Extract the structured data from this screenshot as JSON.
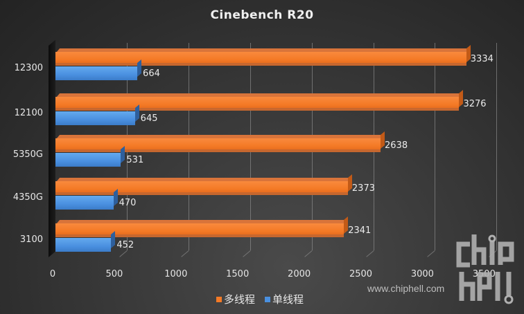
{
  "chart_data": {
    "type": "bar",
    "orientation": "horizontal",
    "title": "Cinebench  R20",
    "categories": [
      "12300",
      "12100",
      "5350G",
      "4350G",
      "3100"
    ],
    "series": [
      {
        "name": "多线程",
        "color": "#f47a26",
        "values": [
          3334,
          3276,
          2638,
          2373,
          2341
        ]
      },
      {
        "name": "单线程",
        "color": "#4a90e0",
        "values": [
          664,
          645,
          531,
          470,
          452
        ]
      }
    ],
    "xlabel": "",
    "ylabel": "",
    "xlim": [
      0,
      3500
    ],
    "xticks": [
      "0",
      "500",
      "1000",
      "1500",
      "2000",
      "2500",
      "3000",
      "3500"
    ],
    "grid": true,
    "legend_position": "bottom",
    "style": "3d-clustered-bar"
  },
  "labels": {
    "title": "Cinebench  R20",
    "categories": [
      "12300",
      "12100",
      "5350G",
      "4350G",
      "3100"
    ],
    "multi": [
      "3334",
      "3276",
      "2638",
      "2373",
      "2341"
    ],
    "single": [
      "664",
      "645",
      "531",
      "470",
      "452"
    ],
    "ticks": [
      "0",
      "500",
      "1000",
      "1500",
      "2000",
      "2500",
      "3000",
      "3500"
    ],
    "legend_multi": "多线程",
    "legend_single": "单线程"
  },
  "watermark": {
    "url": "www.chiphell.com",
    "logo_text": "chiphell"
  }
}
